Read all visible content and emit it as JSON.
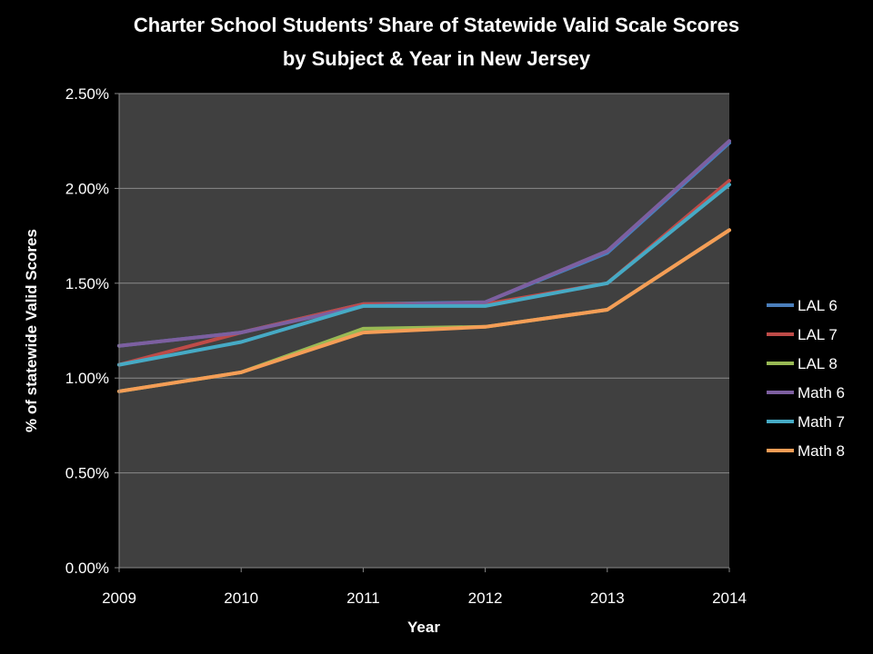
{
  "chart_data": {
    "type": "line",
    "title_lines": [
      "Charter School Students’ Share of Statewide Valid Scale Scores",
      "by Subject & Year in New Jersey"
    ],
    "xlabel": "Year",
    "ylabel": "% of statewide Valid Scores",
    "categories": [
      "2009",
      "2010",
      "2011",
      "2012",
      "2013",
      "2014"
    ],
    "y_ticks": [
      0,
      0.5,
      1.0,
      1.5,
      2.0,
      2.5
    ],
    "y_tick_labels": [
      "0.00%",
      "0.50%",
      "1.00%",
      "1.50%",
      "2.00%",
      "2.50%"
    ],
    "ylim": [
      0,
      2.5
    ],
    "grid": true,
    "legend_position": "right",
    "series": [
      {
        "name": "LAL 6",
        "color": "#4a7ebb",
        "values": [
          1.17,
          1.24,
          1.39,
          1.4,
          1.66,
          2.24
        ]
      },
      {
        "name": "LAL 7",
        "color": "#be4b48",
        "values": [
          1.07,
          1.24,
          1.39,
          1.39,
          1.5,
          2.04
        ]
      },
      {
        "name": "LAL 8",
        "color": "#98b954",
        "values": [
          0.93,
          1.03,
          1.26,
          1.27,
          1.36,
          1.78
        ]
      },
      {
        "name": "Math 6",
        "color": "#7d5fa0",
        "values": [
          1.17,
          1.24,
          1.38,
          1.4,
          1.67,
          2.25
        ]
      },
      {
        "name": "Math 7",
        "color": "#46aac5",
        "values": [
          1.07,
          1.19,
          1.38,
          1.38,
          1.5,
          2.02
        ]
      },
      {
        "name": "Math 8",
        "color": "#f59d56",
        "values": [
          0.93,
          1.03,
          1.24,
          1.27,
          1.36,
          1.78
        ]
      }
    ]
  }
}
